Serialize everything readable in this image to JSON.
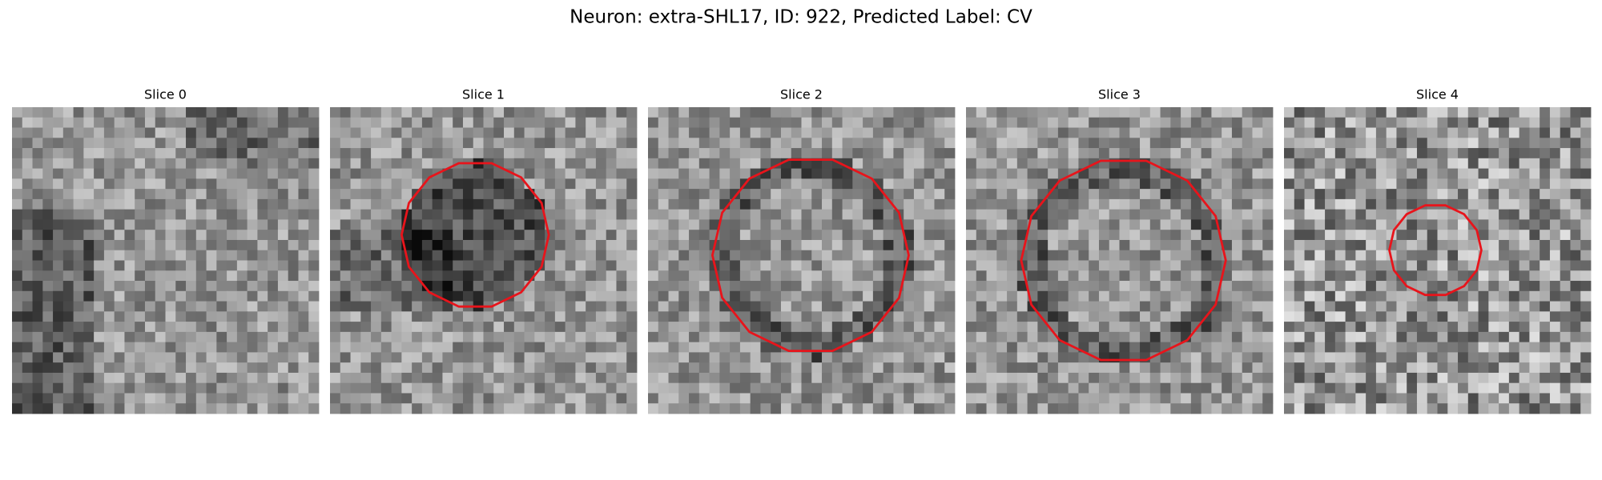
{
  "header": {
    "title": "Neuron: extra-SHL17, ID: 922, Predicted Label: CV"
  },
  "panels": [
    {
      "title": "Slice 0"
    },
    {
      "title": "Slice 1"
    },
    {
      "title": "Slice 2"
    },
    {
      "title": "Slice 3"
    },
    {
      "title": "Slice 4"
    }
  ]
}
